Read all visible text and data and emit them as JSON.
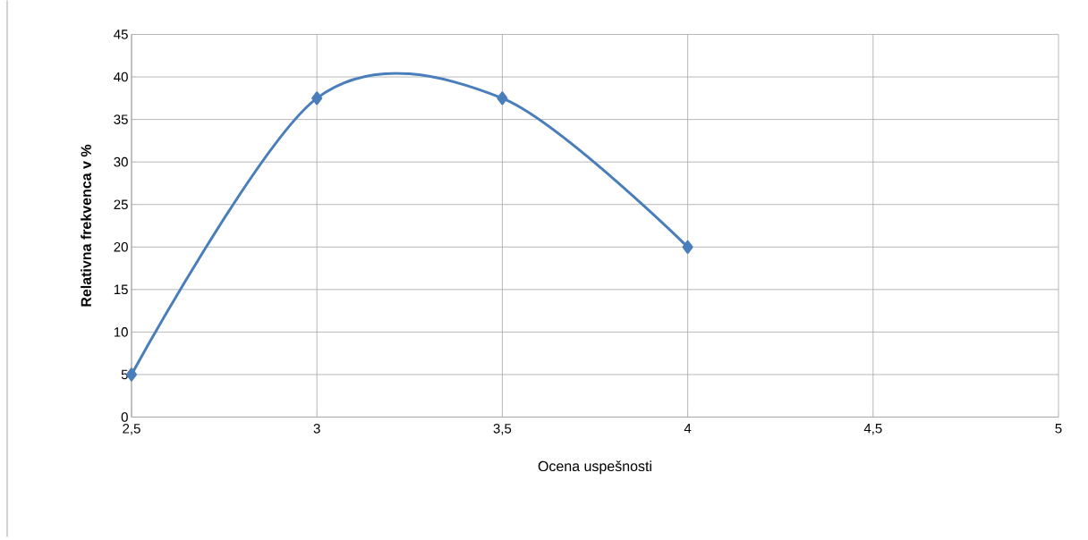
{
  "chart_data": {
    "type": "line",
    "xlabel": "Ocena uspešnosti",
    "ylabel": "Relativna frekvenca v %",
    "x": [
      2.5,
      3,
      3.5,
      4
    ],
    "values": [
      5,
      37.5,
      37.5,
      20
    ],
    "color": "#4a7ebb",
    "marker": "diamond",
    "line_style": "solid",
    "xlim": [
      2.5,
      5
    ],
    "xticks": [
      {
        "value": 2.5,
        "label": "2,5"
      },
      3,
      {
        "value": 3.5,
        "label": "3,5"
      },
      4,
      {
        "value": 4.5,
        "label": "4,5"
      },
      5
    ],
    "ylim": [
      0,
      45
    ],
    "yticks": [
      0,
      5,
      10,
      15,
      20,
      25,
      30,
      35,
      40,
      45
    ],
    "grid": true
  }
}
